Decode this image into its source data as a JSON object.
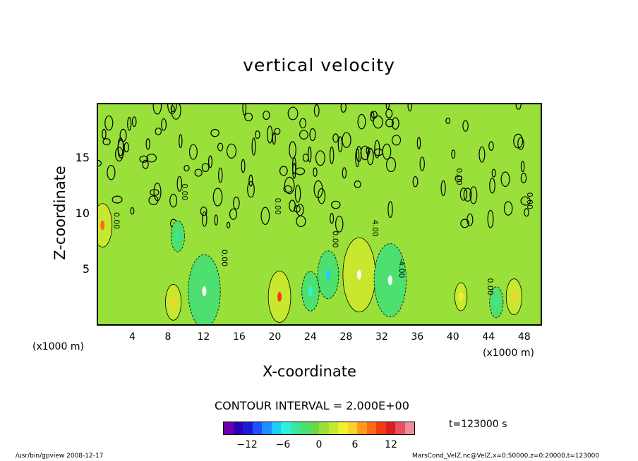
{
  "chart_data": {
    "type": "heatmap",
    "title": "vertical velocity",
    "xlabel": "X-coordinate",
    "ylabel": "Z-coordinate",
    "x_unit_left": "(x1000 m)",
    "x_unit_right": "(x1000 m)",
    "xlim": [
      0,
      50
    ],
    "ylim": [
      0,
      20
    ],
    "x_ticks": [
      "4",
      "8",
      "12",
      "16",
      "20",
      "24",
      "28",
      "32",
      "36",
      "40",
      "44",
      "48"
    ],
    "y_ticks": [
      "5",
      "10",
      "15"
    ],
    "contour_interval_text": "CONTOUR INTERVAL = 2.000E+00",
    "contour_labels": [
      "0.00",
      "0.00",
      "0.00",
      "0.00",
      "4.00",
      "0.00",
      "-4.00",
      "0.00",
      "0.00",
      "0.00"
    ],
    "colorbar": {
      "range": [
        -16,
        16
      ],
      "tick_labels": [
        "−12",
        "−6",
        "0",
        "6",
        "12"
      ],
      "colors": [
        "#6a00a8",
        "#2c00b4",
        "#1a1ad8",
        "#1e50ff",
        "#1f8fff",
        "#1ecbff",
        "#2ef0e0",
        "#38e8a0",
        "#4de070",
        "#6bd84a",
        "#9ae03a",
        "#c8e830",
        "#f0f030",
        "#ffd02a",
        "#ff9a20",
        "#ff6a14",
        "#f03a10",
        "#d81e1e",
        "#e85060",
        "#f08aa0"
      ]
    },
    "features": [
      {
        "kind": "updraft",
        "x": 29.5,
        "z": 4.5,
        "peak": 16
      },
      {
        "kind": "downdraft",
        "x": 12,
        "z": 3,
        "peak": -14
      },
      {
        "kind": "downdraft",
        "x": 33,
        "z": 4,
        "peak": -14
      },
      {
        "kind": "updraft",
        "x": 20.5,
        "z": 2.5,
        "peak": 10
      },
      {
        "kind": "updraft",
        "x": 0.5,
        "z": 9,
        "peak": 8
      },
      {
        "kind": "updraft",
        "x": 8.5,
        "z": 2,
        "peak": 6
      },
      {
        "kind": "updraft",
        "x": 47,
        "z": 2.5,
        "peak": 6
      },
      {
        "kind": "updraft",
        "x": 41,
        "z": 2.5,
        "peak": 4
      },
      {
        "kind": "downdraft",
        "x": 26,
        "z": 4.5,
        "peak": -8
      },
      {
        "kind": "downdraft",
        "x": 24,
        "z": 3,
        "peak": -6
      },
      {
        "kind": "downdraft",
        "x": 9,
        "z": 8,
        "peak": -4
      },
      {
        "kind": "downdraft",
        "x": 45,
        "z": 2,
        "peak": -4
      }
    ]
  },
  "footer": {
    "left": "/usr/bin/gpview  2008-12-17",
    "right": "MarsCond_VelZ.nc@VelZ,x=0:50000,z=0:20000,t=123000"
  },
  "time_text": "t=123000 s"
}
